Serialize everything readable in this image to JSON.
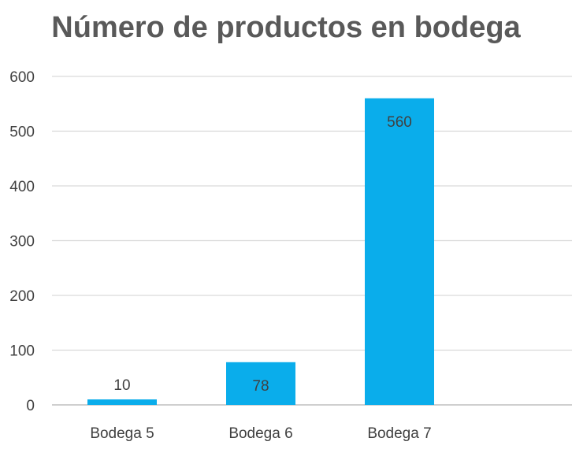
{
  "chart_data": {
    "type": "bar",
    "title": "Número de productos en bodega",
    "categories": [
      "Bodega 5",
      "Bodega 6",
      "Bodega 7"
    ],
    "values": [
      10,
      78,
      560
    ],
    "data_labels": [
      "10",
      "78",
      "560"
    ],
    "xlabel": "",
    "ylabel": "",
    "ylim": [
      0,
      600
    ],
    "yticks": [
      0,
      100,
      200,
      300,
      400,
      500,
      600
    ],
    "ytick_labels": [
      "0",
      "100",
      "200",
      "300",
      "400",
      "500",
      "600"
    ],
    "grid": true,
    "legend": "none",
    "colors": {
      "bar": "#0AADEB",
      "grid": "#D9D9D9",
      "axis": "#BFBFBF",
      "text": "#404040",
      "title": "#595959"
    }
  }
}
